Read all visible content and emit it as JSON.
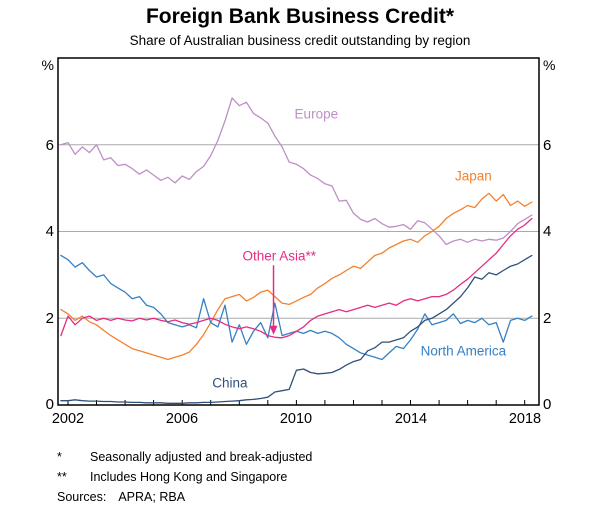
{
  "title": "Foreign Bank Business Credit*",
  "subtitle": "Share of Australian business credit outstanding by region",
  "footnotes": [
    {
      "symbol": "*",
      "text": "Seasonally adjusted and break-adjusted"
    },
    {
      "symbol": "**",
      "text": "Includes Hong Kong and Singapore"
    }
  ],
  "sources_label": "Sources:",
  "sources": "APRA; RBA",
  "chart_data": {
    "type": "line",
    "title": "Foreign Bank Business Credit",
    "xlabel": "",
    "ylabel": "%",
    "grid": "horizontal",
    "legend_position": "inline-labels",
    "x_axis": {
      "min": 2001.65,
      "max": 2018.5,
      "tick_interval_years": 1,
      "labels": [
        "2002",
        "2006",
        "2010",
        "2014",
        "2018"
      ],
      "label_years": [
        2002,
        2006,
        2010,
        2014,
        2018
      ]
    },
    "y_axis": {
      "min": 0,
      "max": 8,
      "unit": "%",
      "gridlines": [
        2,
        4,
        6
      ],
      "tick_labels": [
        "0",
        "2",
        "4",
        "6"
      ]
    },
    "x_start": 2001.75,
    "x_step": 0.25,
    "series": [
      {
        "name": "Europe",
        "color": "#BD8FC6",
        "label_pos": {
          "year": 2010.7,
          "value": 6.7
        },
        "values": [
          6.0,
          6.05,
          5.78,
          5.95,
          5.82,
          6.0,
          5.65,
          5.7,
          5.52,
          5.55,
          5.45,
          5.32,
          5.42,
          5.3,
          5.18,
          5.25,
          5.12,
          5.28,
          5.2,
          5.38,
          5.5,
          5.75,
          6.1,
          6.55,
          7.08,
          6.9,
          6.98,
          6.72,
          6.62,
          6.5,
          6.2,
          5.95,
          5.6,
          5.55,
          5.45,
          5.3,
          5.22,
          5.1,
          5.05,
          4.7,
          4.72,
          4.42,
          4.28,
          4.22,
          4.3,
          4.18,
          4.1,
          4.12,
          4.16,
          4.05,
          4.25,
          4.2,
          4.05,
          3.9,
          3.7,
          3.78,
          3.82,
          3.75,
          3.82,
          3.78,
          3.82,
          3.8,
          3.85,
          4.0,
          4.18,
          4.28,
          4.38
        ]
      },
      {
        "name": "Japan",
        "color": "#F5812D",
        "label_pos": {
          "year": 2016.2,
          "value": 5.28
        },
        "values": [
          2.2,
          2.1,
          1.95,
          2.05,
          1.92,
          1.85,
          1.72,
          1.6,
          1.5,
          1.4,
          1.3,
          1.25,
          1.2,
          1.15,
          1.1,
          1.05,
          1.1,
          1.15,
          1.22,
          1.4,
          1.62,
          1.9,
          2.2,
          2.45,
          2.5,
          2.55,
          2.4,
          2.48,
          2.6,
          2.65,
          2.5,
          2.35,
          2.32,
          2.4,
          2.48,
          2.55,
          2.7,
          2.8,
          2.92,
          3.0,
          3.1,
          3.2,
          3.15,
          3.3,
          3.45,
          3.5,
          3.62,
          3.7,
          3.78,
          3.82,
          3.75,
          3.9,
          4.0,
          4.12,
          4.3,
          4.42,
          4.5,
          4.6,
          4.55,
          4.75,
          4.88,
          4.7,
          4.85,
          4.6,
          4.7,
          4.58,
          4.68
        ]
      },
      {
        "name": "North America",
        "color": "#3580C4",
        "label_pos": {
          "year": 2015.85,
          "value": 1.25
        },
        "values": [
          3.45,
          3.35,
          3.18,
          3.28,
          3.1,
          2.95,
          3.0,
          2.8,
          2.7,
          2.6,
          2.45,
          2.5,
          2.3,
          2.25,
          2.1,
          1.9,
          1.85,
          1.8,
          1.85,
          1.78,
          2.45,
          1.9,
          1.8,
          2.3,
          1.45,
          1.85,
          1.4,
          1.7,
          1.9,
          1.55,
          2.35,
          1.6,
          1.65,
          1.7,
          1.65,
          1.72,
          1.65,
          1.7,
          1.65,
          1.55,
          1.4,
          1.3,
          1.2,
          1.15,
          1.1,
          1.05,
          1.2,
          1.35,
          1.3,
          1.5,
          1.75,
          2.1,
          1.85,
          1.9,
          1.95,
          2.1,
          1.88,
          1.95,
          1.9,
          2.0,
          1.85,
          1.9,
          1.45,
          1.95,
          2.0,
          1.95,
          2.05
        ]
      },
      {
        "name": "Other Asia**",
        "color": "#E42D82",
        "label_pos": {
          "year": 2009.4,
          "value": 3.43
        },
        "values": [
          1.6,
          2.05,
          1.85,
          2.0,
          2.05,
          1.95,
          2.0,
          1.95,
          2.0,
          1.96,
          1.94,
          2.0,
          1.96,
          2.0,
          1.95,
          1.92,
          1.96,
          1.9,
          1.86,
          1.9,
          1.95,
          2.0,
          1.95,
          1.86,
          1.8,
          1.76,
          1.8,
          1.76,
          1.7,
          1.6,
          1.56,
          1.55,
          1.6,
          1.7,
          1.8,
          1.95,
          2.05,
          2.1,
          2.15,
          2.2,
          2.15,
          2.2,
          2.25,
          2.3,
          2.25,
          2.3,
          2.35,
          2.3,
          2.4,
          2.45,
          2.4,
          2.45,
          2.5,
          2.5,
          2.55,
          2.65,
          2.78,
          2.9,
          3.05,
          3.2,
          3.35,
          3.5,
          3.7,
          3.9,
          4.05,
          4.15,
          4.3
        ]
      },
      {
        "name": "China",
        "color": "#30507C",
        "label_pos": {
          "year": 2007.67,
          "value": 0.5
        },
        "values": [
          0.1,
          0.1,
          0.12,
          0.1,
          0.09,
          0.09,
          0.08,
          0.08,
          0.07,
          0.07,
          0.06,
          0.06,
          0.05,
          0.05,
          0.05,
          0.04,
          0.04,
          0.04,
          0.05,
          0.05,
          0.06,
          0.06,
          0.07,
          0.08,
          0.09,
          0.1,
          0.12,
          0.13,
          0.15,
          0.18,
          0.3,
          0.33,
          0.36,
          0.8,
          0.83,
          0.75,
          0.72,
          0.73,
          0.75,
          0.82,
          0.92,
          1.0,
          1.05,
          1.25,
          1.32,
          1.45,
          1.45,
          1.5,
          1.55,
          1.7,
          1.8,
          1.95,
          2.0,
          2.1,
          2.2,
          2.35,
          2.5,
          2.7,
          2.95,
          2.9,
          3.05,
          3.0,
          3.1,
          3.2,
          3.25,
          3.35,
          3.45
        ]
      }
    ],
    "annotation_arrow": {
      "series": "Other Asia**",
      "year": 2009.2,
      "from_value": 3.22,
      "to_value": 1.62,
      "color": "#E42D82"
    },
    "frame_color": "#000000",
    "gridline_color": "#AAAAAA"
  }
}
